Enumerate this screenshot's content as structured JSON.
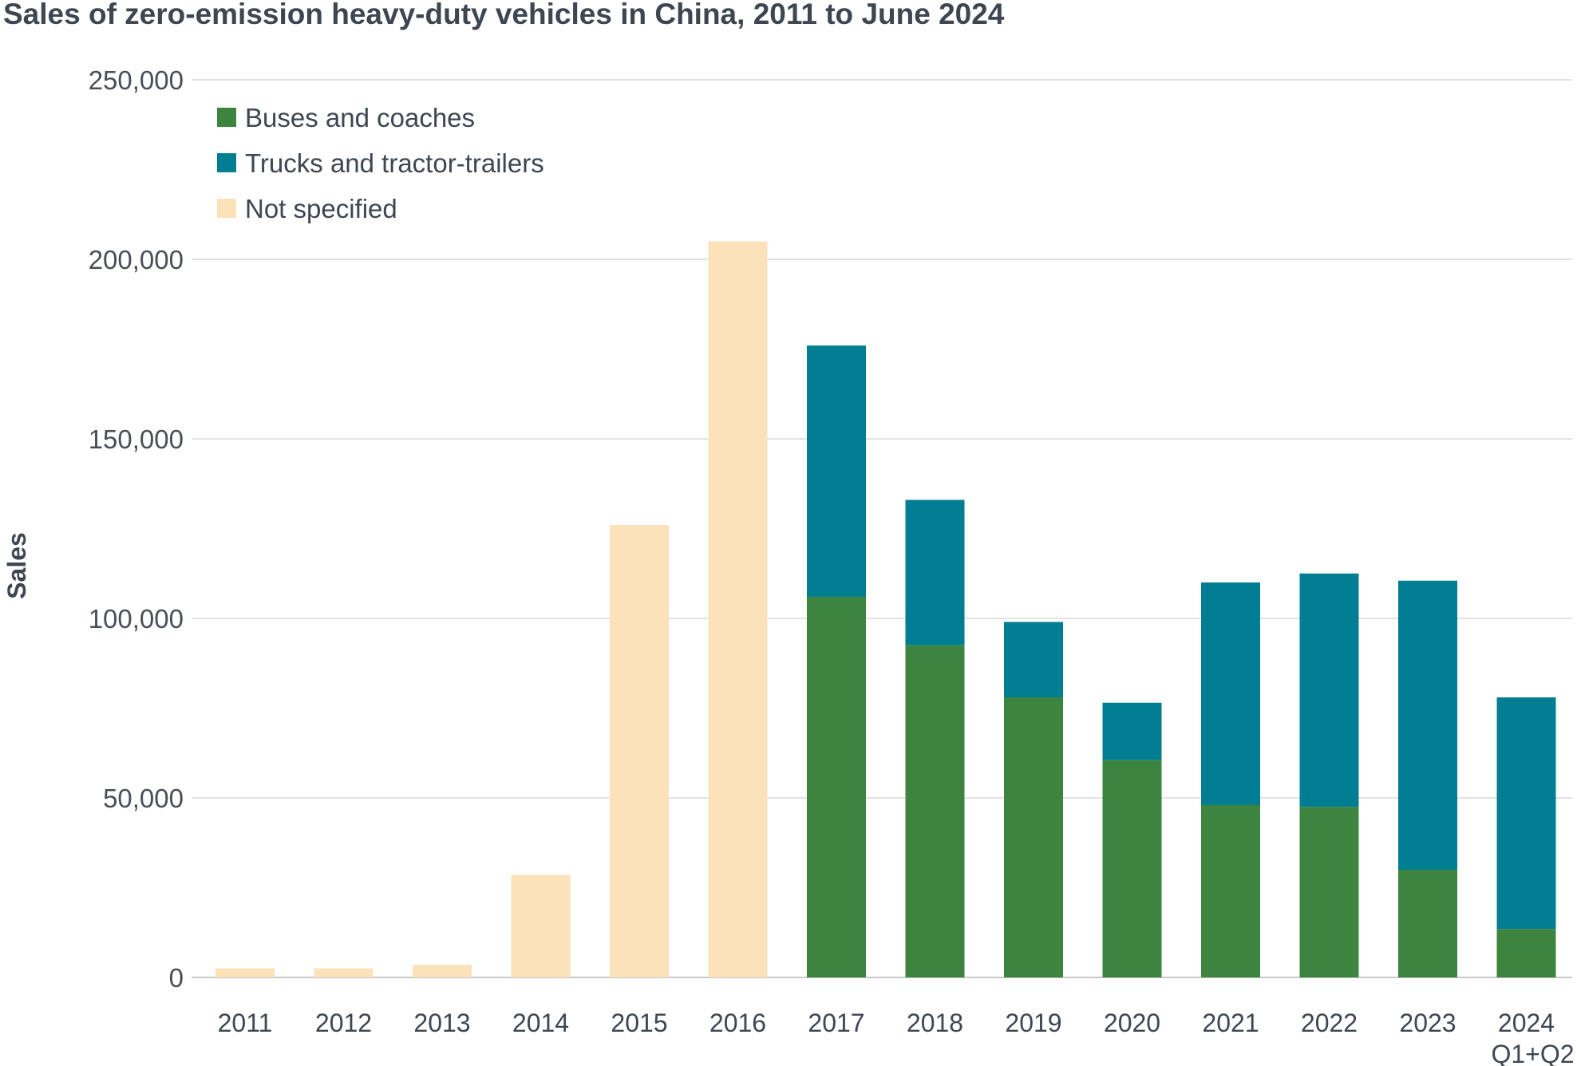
{
  "chart_data": {
    "type": "bar",
    "stacked": true,
    "title": "Sales of zero-emission heavy-duty vehicles in China, 2011 to June 2024",
    "ylabel": "Sales",
    "xlabel": "",
    "ylim": [
      0,
      250000
    ],
    "yticks": [
      0,
      50000,
      100000,
      150000,
      200000,
      250000
    ],
    "ytick_labels": [
      "0",
      "50,000",
      "100,000",
      "150,000",
      "200,000",
      "250,000"
    ],
    "grid": true,
    "legend_position": "top-left",
    "categories": [
      "2011",
      "2012",
      "2013",
      "2014",
      "2015",
      "2016",
      "2017",
      "2018",
      "2019",
      "2020",
      "2021",
      "2022",
      "2023",
      "2024"
    ],
    "category_sublabels": [
      "",
      "",
      "",
      "",
      "",
      "",
      "",
      "",
      "",
      "",
      "",
      "",
      "",
      "Q1+Q2"
    ],
    "series": [
      {
        "name": "Buses and coaches",
        "color": "#3d853f",
        "values": [
          0,
          0,
          0,
          0,
          0,
          0,
          106000,
          92500,
          78000,
          60500,
          48000,
          47500,
          30000,
          13500
        ]
      },
      {
        "name": "Trucks and tractor-trailers",
        "color": "#007e91",
        "values": [
          0,
          0,
          0,
          0,
          0,
          0,
          70000,
          40500,
          21000,
          16000,
          62000,
          65000,
          80500,
          64500
        ]
      },
      {
        "name": "Not specified",
        "color": "#fbe2b9",
        "values": [
          2500,
          2500,
          3500,
          28500,
          126000,
          205000,
          0,
          0,
          0,
          0,
          0,
          0,
          0,
          0
        ]
      }
    ]
  }
}
